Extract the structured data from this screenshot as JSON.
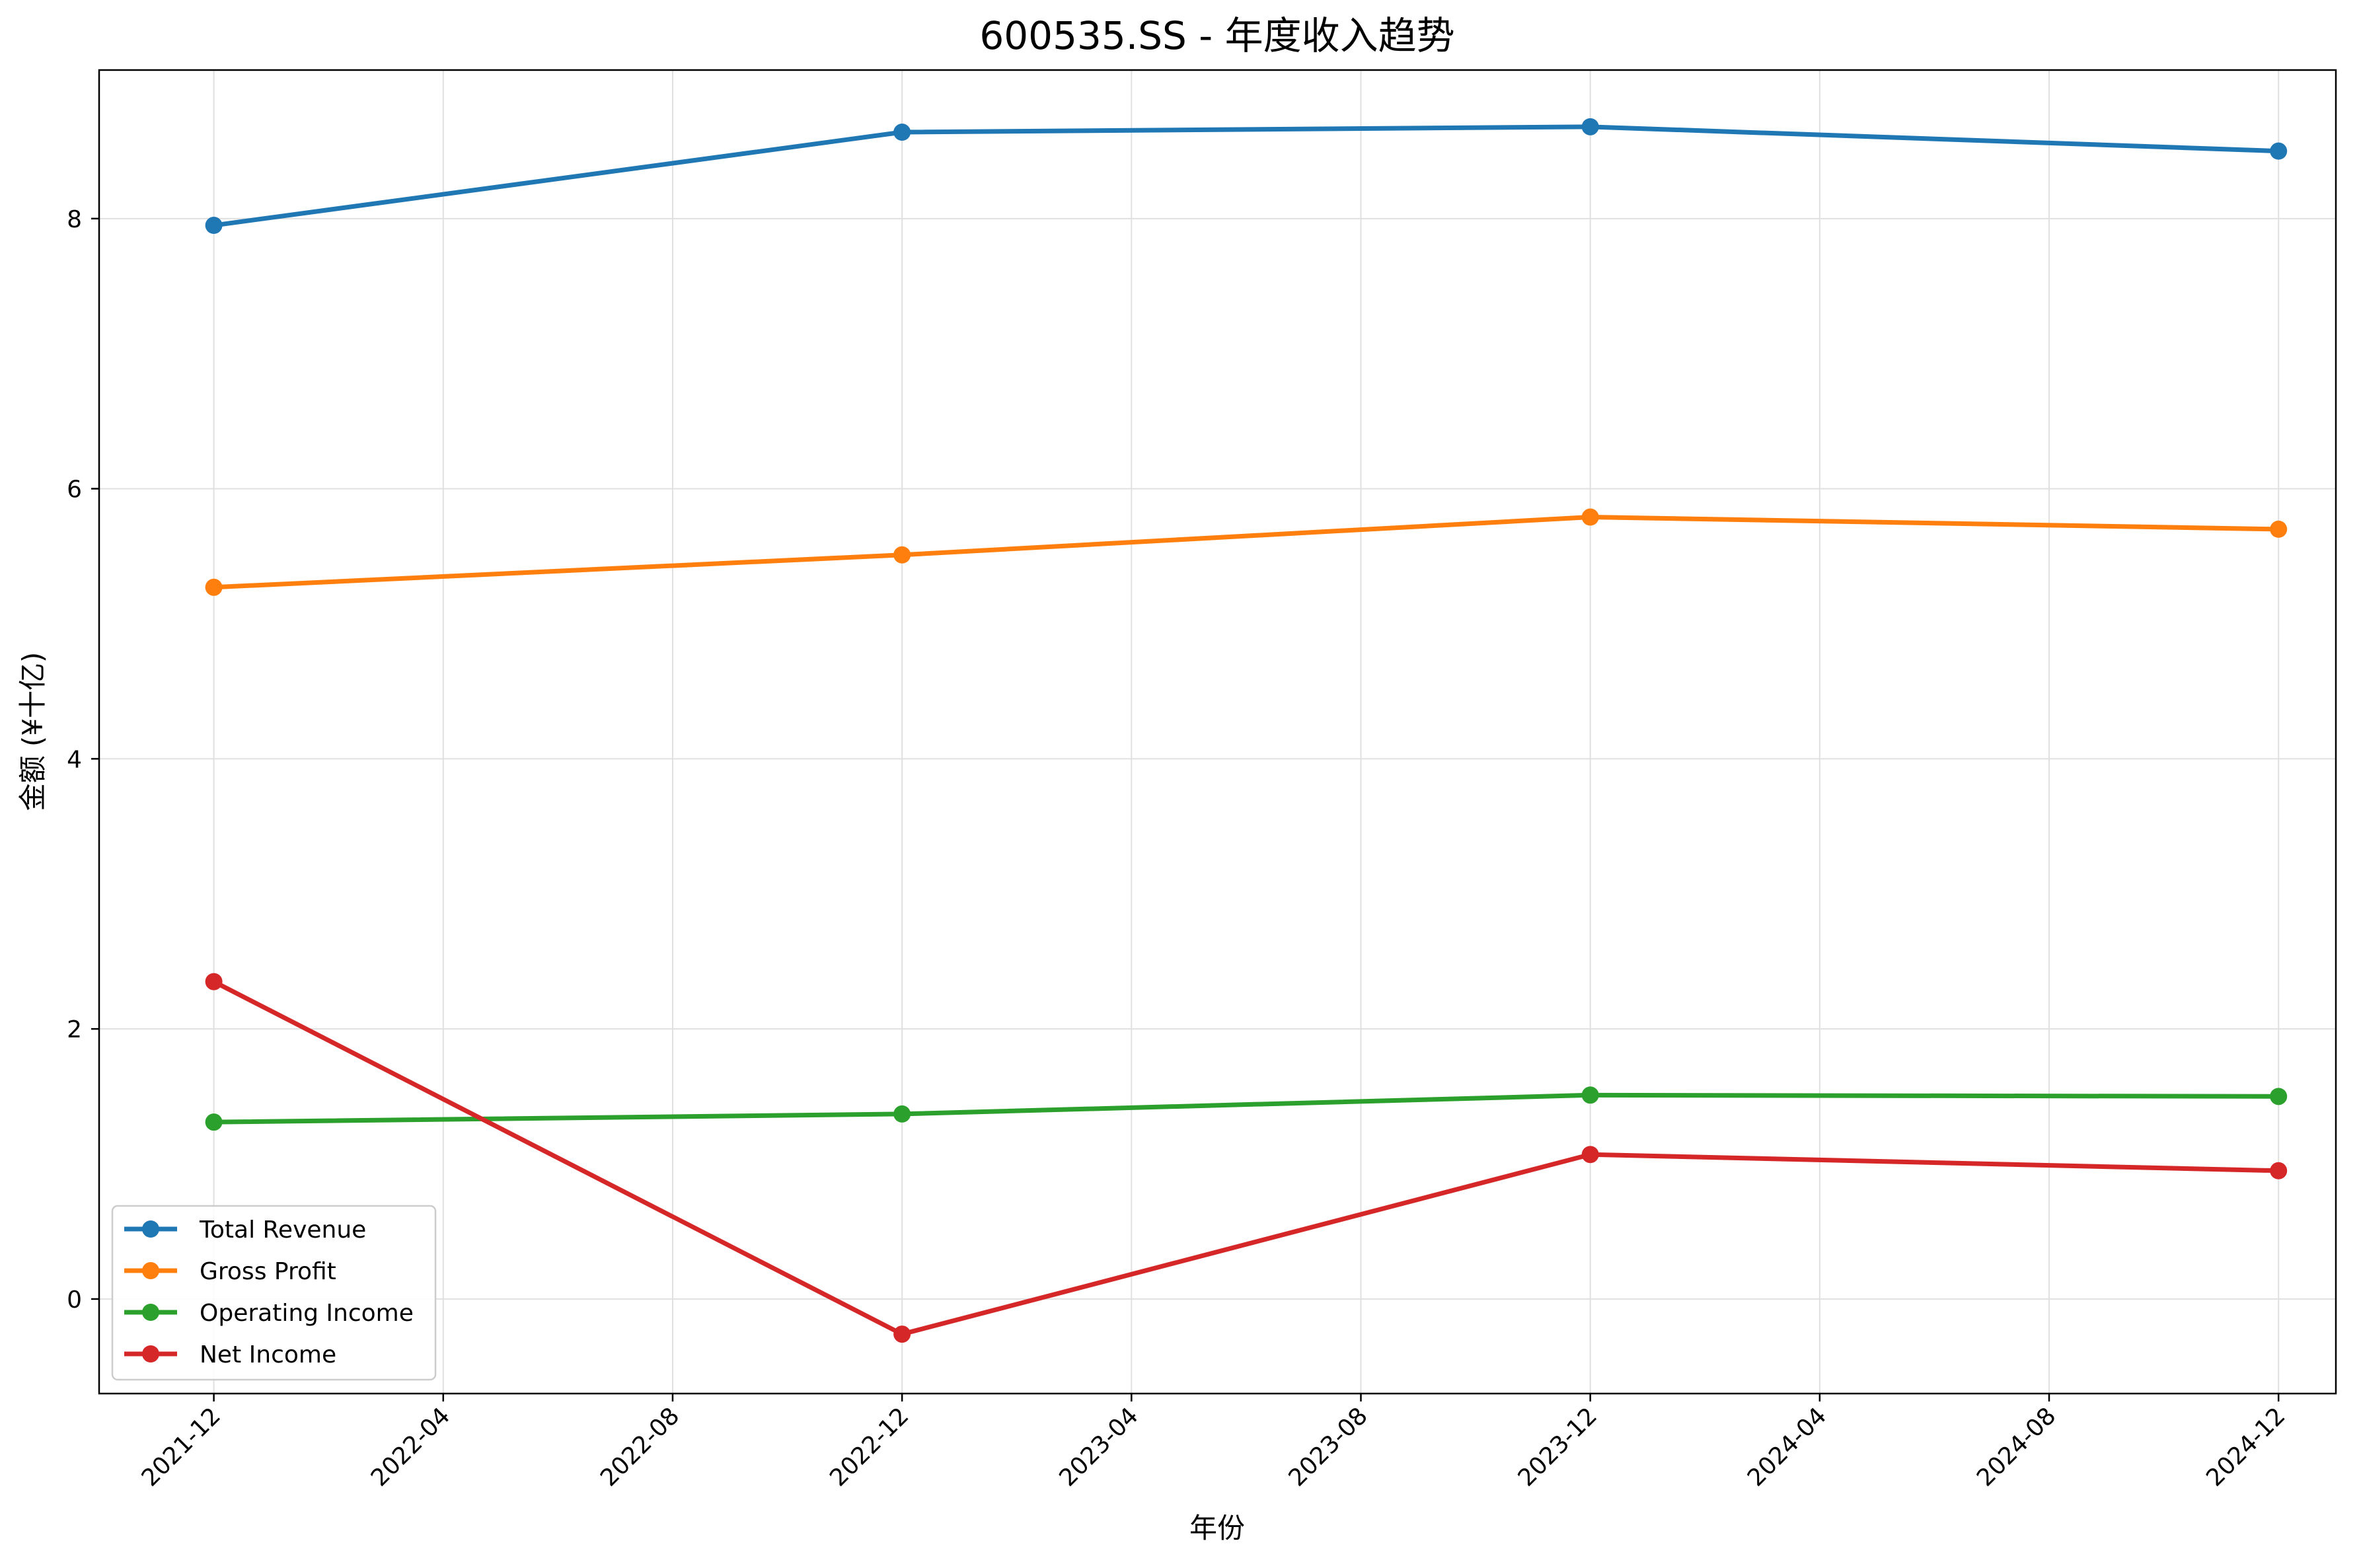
{
  "chart_data": {
    "type": "line",
    "title": "600535.SS - 年度收入趋势",
    "xlabel": "年份",
    "ylabel": "金额 (¥十亿)",
    "x": [
      "2021-12",
      "2022-12",
      "2023-12",
      "2024-12"
    ],
    "x_ticks": [
      "2021-12",
      "2022-04",
      "2022-08",
      "2022-12",
      "2023-04",
      "2023-08",
      "2023-12",
      "2024-04",
      "2024-08",
      "2024-12"
    ],
    "y_ticks": [
      0,
      2,
      4,
      6,
      8
    ],
    "ylim": [
      -0.7,
      9.1
    ],
    "xlim": [
      "2021-10",
      "2025-01"
    ],
    "grid": true,
    "legend_position": "lower-left",
    "series": [
      {
        "name": "Total Revenue",
        "color": "#1f77b4",
        "values": [
          7.95,
          8.64,
          8.68,
          8.5
        ]
      },
      {
        "name": "Gross Profit",
        "color": "#ff7f0e",
        "values": [
          5.27,
          5.51,
          5.79,
          5.7
        ]
      },
      {
        "name": "Operating Income",
        "color": "#2ca02c",
        "values": [
          1.31,
          1.37,
          1.51,
          1.5
        ]
      },
      {
        "name": "Net Income",
        "color": "#d62728",
        "values": [
          2.35,
          -0.26,
          1.07,
          0.95
        ]
      }
    ]
  }
}
